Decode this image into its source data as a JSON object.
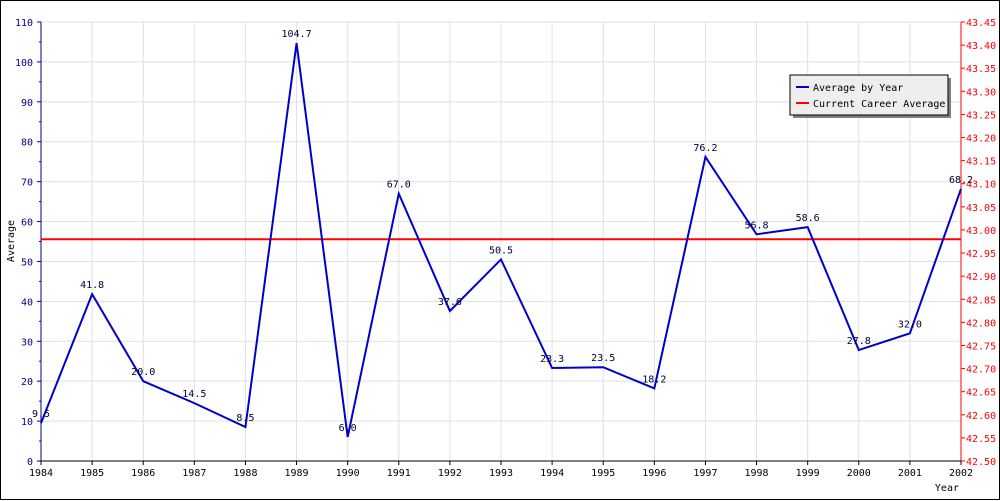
{
  "chart_data": {
    "type": "line",
    "x": [
      "1984",
      "1985",
      "1986",
      "1987",
      "1988",
      "1989",
      "1990",
      "1991",
      "1992",
      "1993",
      "1994",
      "1995",
      "1996",
      "1997",
      "1998",
      "1999",
      "2000",
      "2001",
      "2002"
    ],
    "series": [
      {
        "name": "Average by Year",
        "color": "#0000cc",
        "axis": "left",
        "values": [
          9.5,
          41.8,
          20.0,
          14.5,
          8.5,
          104.7,
          6.0,
          67.0,
          37.6,
          50.5,
          23.3,
          23.5,
          18.2,
          76.2,
          56.8,
          58.6,
          27.8,
          32.0,
          68.2
        ],
        "labels": [
          "9.5",
          "41.8",
          "20.0",
          "14.5",
          "8.5",
          "104.7",
          "6.0",
          "67.0",
          "37.6",
          "50.5",
          "23.3",
          "23.5",
          "18.2",
          "76.2",
          "56.8",
          "58.6",
          "27.8",
          "32.0",
          "68.2"
        ]
      },
      {
        "name": "Current Career Average",
        "color": "#ff0000",
        "axis": "right",
        "value": 42.98
      }
    ],
    "xlabel": "Year",
    "ylabel": "Average",
    "ylim": [
      0,
      110
    ],
    "y_ticks": [
      "0",
      "10",
      "20",
      "30",
      "40",
      "50",
      "60",
      "70",
      "80",
      "90",
      "100",
      "110"
    ],
    "y2lim": [
      42.5,
      43.45
    ],
    "y2_ticks": [
      "42.50",
      "42.55",
      "42.60",
      "42.65",
      "42.70",
      "42.75",
      "42.80",
      "42.85",
      "42.90",
      "42.95",
      "43.00",
      "43.05",
      "43.10",
      "43.15",
      "43.20",
      "43.25",
      "43.30",
      "43.35",
      "43.40",
      "43.45"
    ],
    "grid": true,
    "legend_position": "top-right",
    "colors": {
      "left_axis": "#00008b",
      "right_axis": "#ff0000",
      "grid": "#e0e0e0"
    }
  }
}
